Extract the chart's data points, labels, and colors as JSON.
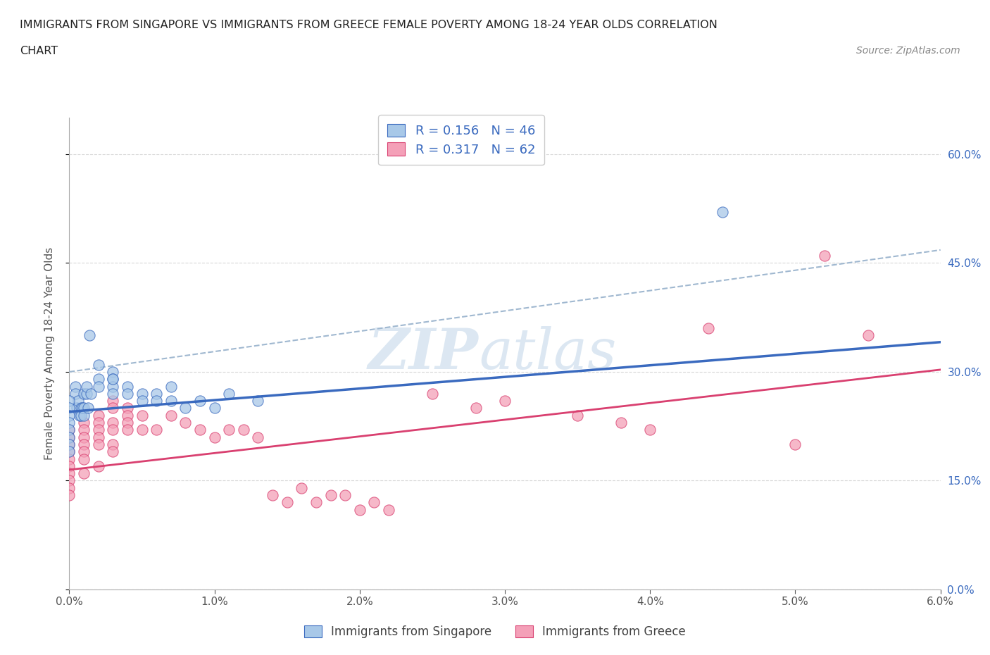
{
  "title_line1": "IMMIGRANTS FROM SINGAPORE VS IMMIGRANTS FROM GREECE FEMALE POVERTY AMONG 18-24 YEAR OLDS CORRELATION",
  "title_line2": "CHART",
  "source_text": "Source: ZipAtlas.com",
  "ylabel": "Female Poverty Among 18-24 Year Olds",
  "xlim": [
    0.0,
    0.06
  ],
  "ylim": [
    0.0,
    0.65
  ],
  "xticks": [
    0.0,
    0.01,
    0.02,
    0.03,
    0.04,
    0.05,
    0.06
  ],
  "xticklabels": [
    "0.0%",
    "1.0%",
    "2.0%",
    "3.0%",
    "4.0%",
    "5.0%",
    "6.0%"
  ],
  "ytick_positions": [
    0.0,
    0.15,
    0.3,
    0.45,
    0.6
  ],
  "ytick_labels": [
    "0.0%",
    "15.0%",
    "30.0%",
    "45.0%",
    "60.0%"
  ],
  "singapore_color": "#a8c8e8",
  "greece_color": "#f4a0b8",
  "singapore_line_color": "#3a6abf",
  "greece_line_color": "#d94070",
  "legend_label_sg": "R = 0.156   N = 46",
  "legend_label_gr": "R = 0.317   N = 62",
  "watermark_zip": "ZIP",
  "watermark_atlas": "atlas",
  "sg_x": [
    0.0004,
    0.0004,
    0.0005,
    0.0006,
    0.0007,
    0.0008,
    0.0008,
    0.0009,
    0.001,
    0.001,
    0.001,
    0.0012,
    0.0012,
    0.0013,
    0.0014,
    0.0015,
    0.002,
    0.002,
    0.002,
    0.003,
    0.003,
    0.003,
    0.003,
    0.003,
    0.004,
    0.004,
    0.005,
    0.005,
    0.006,
    0.006,
    0.007,
    0.007,
    0.008,
    0.009,
    0.01,
    0.011,
    0.013,
    0.0,
    0.0,
    0.0,
    0.0,
    0.0,
    0.0,
    0.0,
    0.0,
    0.045
  ],
  "sg_y": [
    0.28,
    0.27,
    0.25,
    0.26,
    0.24,
    0.25,
    0.24,
    0.25,
    0.25,
    0.24,
    0.27,
    0.27,
    0.28,
    0.25,
    0.35,
    0.27,
    0.31,
    0.29,
    0.28,
    0.3,
    0.29,
    0.28,
    0.27,
    0.29,
    0.28,
    0.27,
    0.27,
    0.26,
    0.27,
    0.26,
    0.26,
    0.28,
    0.25,
    0.26,
    0.25,
    0.27,
    0.26,
    0.26,
    0.25,
    0.24,
    0.23,
    0.22,
    0.21,
    0.2,
    0.19,
    0.52
  ],
  "gr_x": [
    0.0,
    0.0,
    0.0,
    0.0,
    0.0,
    0.0,
    0.0,
    0.0,
    0.0,
    0.0,
    0.001,
    0.001,
    0.001,
    0.001,
    0.001,
    0.001,
    0.001,
    0.002,
    0.002,
    0.002,
    0.002,
    0.002,
    0.002,
    0.003,
    0.003,
    0.003,
    0.003,
    0.003,
    0.003,
    0.004,
    0.004,
    0.004,
    0.004,
    0.005,
    0.005,
    0.006,
    0.007,
    0.008,
    0.009,
    0.01,
    0.011,
    0.012,
    0.013,
    0.014,
    0.015,
    0.016,
    0.017,
    0.018,
    0.019,
    0.02,
    0.021,
    0.022,
    0.025,
    0.028,
    0.03,
    0.035,
    0.038,
    0.04,
    0.044,
    0.05,
    0.052,
    0.055
  ],
  "gr_y": [
    0.22,
    0.21,
    0.2,
    0.19,
    0.18,
    0.17,
    0.16,
    0.15,
    0.14,
    0.13,
    0.23,
    0.22,
    0.21,
    0.2,
    0.19,
    0.18,
    0.16,
    0.24,
    0.23,
    0.22,
    0.21,
    0.2,
    0.17,
    0.26,
    0.25,
    0.23,
    0.22,
    0.2,
    0.19,
    0.25,
    0.24,
    0.23,
    0.22,
    0.24,
    0.22,
    0.22,
    0.24,
    0.23,
    0.22,
    0.21,
    0.22,
    0.22,
    0.21,
    0.13,
    0.12,
    0.14,
    0.12,
    0.13,
    0.13,
    0.11,
    0.12,
    0.11,
    0.27,
    0.25,
    0.26,
    0.24,
    0.23,
    0.22,
    0.36,
    0.2,
    0.46,
    0.35
  ],
  "sg_line_intercept": 0.245,
  "sg_line_slope": 1.6,
  "gr_line_intercept": 0.165,
  "gr_line_slope": 2.3,
  "dashed_line_intercept": 0.3,
  "dashed_line_slope": 2.8
}
